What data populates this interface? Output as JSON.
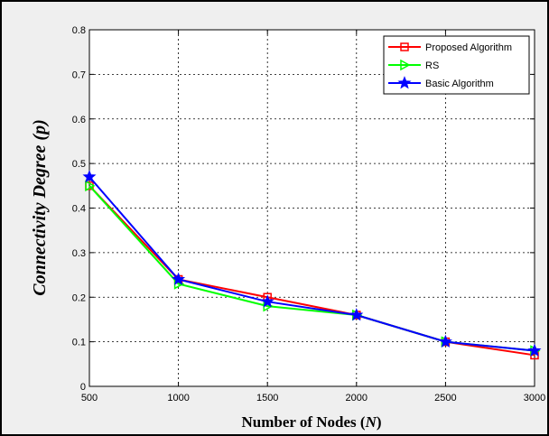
{
  "chart_data": {
    "type": "line",
    "title": "",
    "xlabel": "Number of Nodes (N)",
    "xlabel_prefix": "Number of Nodes (",
    "xlabel_var": "N",
    "xlabel_suffix": ")",
    "ylabel": "Connectivity Degree (p)",
    "ylabel_prefix": "Connectivity Degree (",
    "ylabel_var": "p",
    "ylabel_suffix": ")",
    "x": [
      500,
      1000,
      1500,
      2000,
      2500,
      3000
    ],
    "xlim": [
      500,
      3000
    ],
    "ylim": [
      0,
      0.8
    ],
    "xticks": [
      "500",
      "1000",
      "1500",
      "2000",
      "2500",
      "3000"
    ],
    "yticks": [
      "0",
      "0.1",
      "0.2",
      "0.3",
      "0.4",
      "0.5",
      "0.6",
      "0.7",
      "0.8"
    ],
    "grid": true,
    "legend_position": "top-right",
    "series": [
      {
        "name": "Proposed Algorithm",
        "color": "#ff0000",
        "marker": "square",
        "values": [
          0.45,
          0.24,
          0.2,
          0.16,
          0.1,
          0.07
        ]
      },
      {
        "name": "RS",
        "color": "#00ff00",
        "marker": "triangle-right",
        "values": [
          0.45,
          0.23,
          0.18,
          0.16,
          0.1,
          0.08
        ]
      },
      {
        "name": "Basic Algorithm",
        "color": "#0000ff",
        "marker": "star",
        "values": [
          0.47,
          0.24,
          0.19,
          0.16,
          0.1,
          0.08
        ]
      }
    ]
  }
}
